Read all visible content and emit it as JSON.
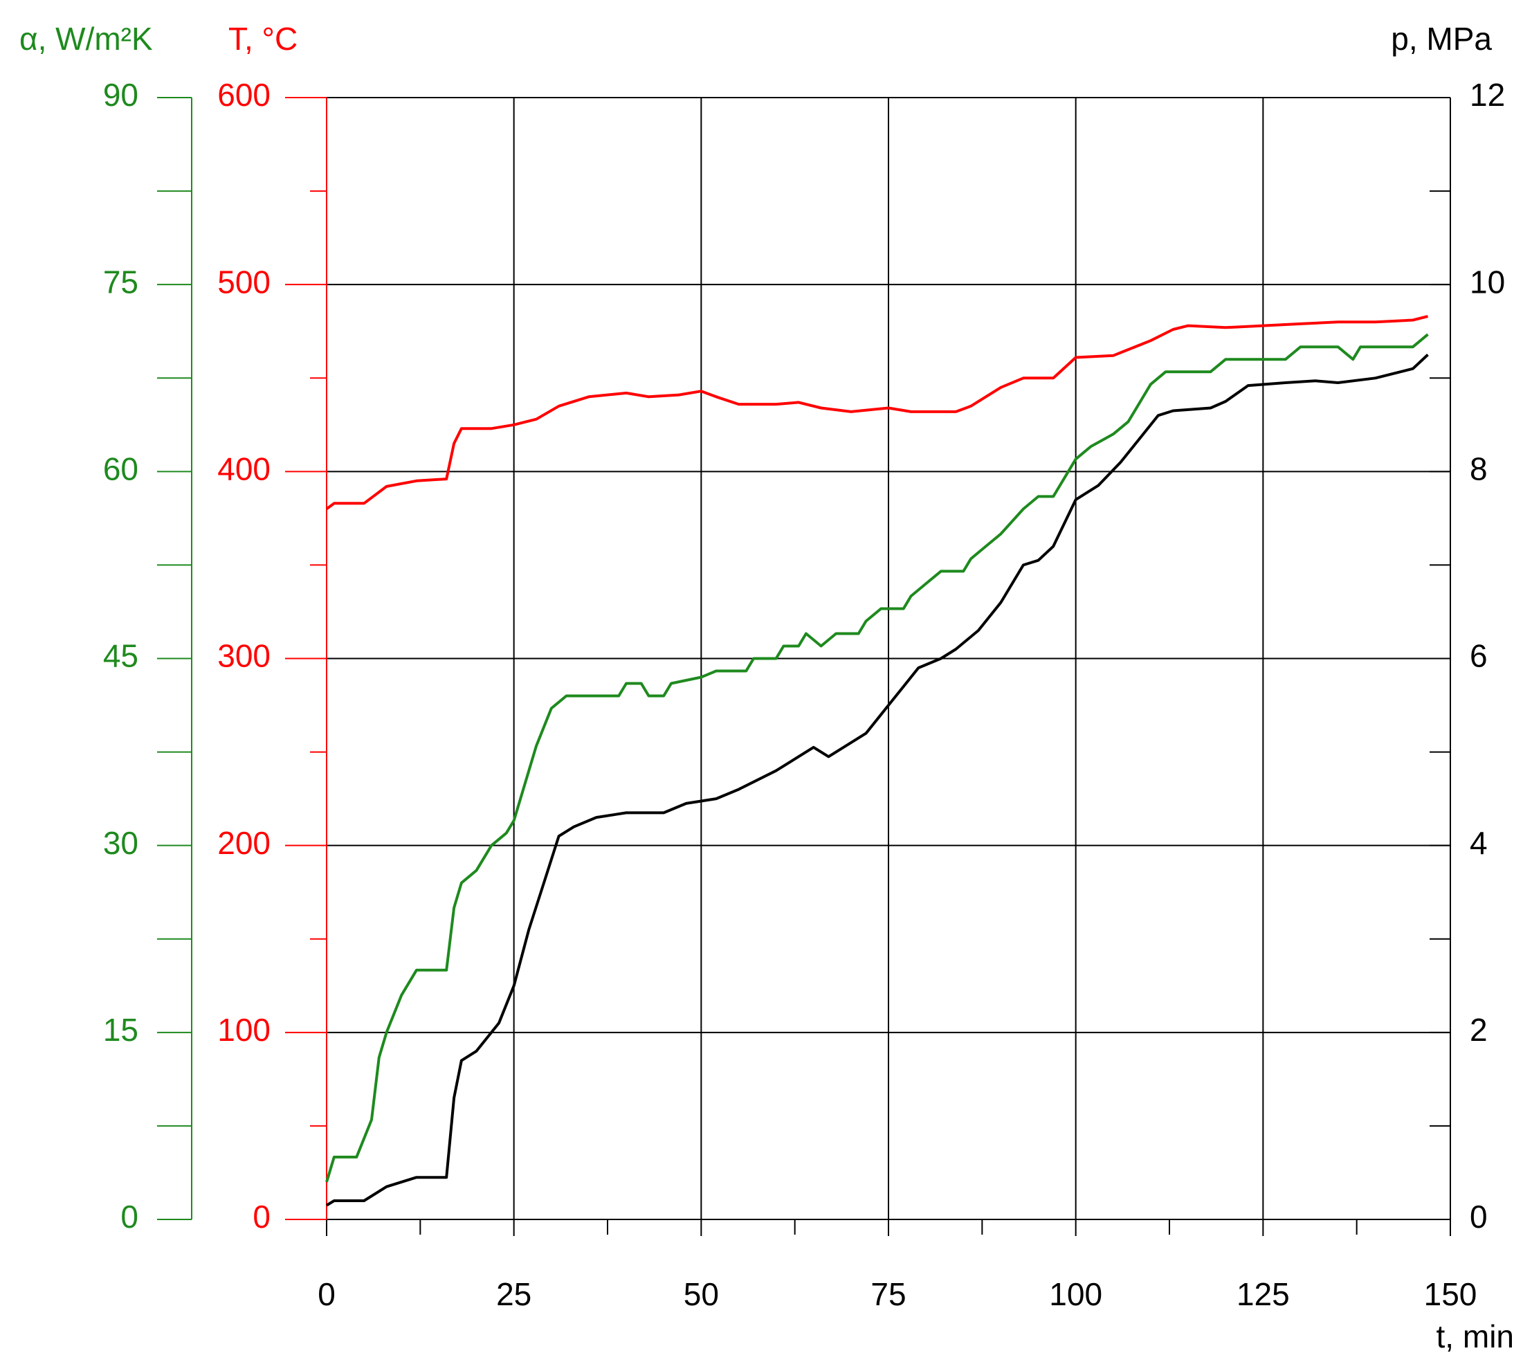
{
  "chart_data": {
    "type": "line",
    "xlabel": "t, min",
    "xlim": [
      0,
      150
    ],
    "xticks": [
      0,
      25,
      50,
      75,
      100,
      125,
      150
    ],
    "x_minor_ticks": [
      12.5,
      37.5,
      62.5,
      87.5,
      112.5,
      137.5
    ],
    "grid": true,
    "y_axes": [
      {
        "label": "α, W/m²K",
        "color": "#1e8a1e",
        "side": "left",
        "lim": [
          0,
          90
        ],
        "ticks": [
          0,
          15,
          30,
          45,
          60,
          75,
          90
        ],
        "minor_ticks": [
          7.5,
          22.5,
          37.5,
          52.5,
          67.5,
          82.5
        ]
      },
      {
        "label": "T, °C",
        "color": "#ff0000",
        "side": "left",
        "lim": [
          0,
          600
        ],
        "ticks": [
          0,
          100,
          200,
          300,
          400,
          500,
          600
        ],
        "minor_ticks": [
          50,
          150,
          250,
          350,
          450,
          550
        ]
      },
      {
        "label": "p, MPa",
        "color": "#000000",
        "side": "right",
        "lim": [
          0,
          12
        ],
        "ticks": [
          0,
          2,
          4,
          6,
          8,
          10,
          12
        ],
        "minor_ticks": [
          1,
          3,
          5,
          7,
          9,
          11
        ]
      }
    ],
    "series": [
      {
        "color": "#ff0000",
        "axis": 1,
        "x": [
          0,
          1,
          5,
          8,
          12,
          16,
          17,
          18,
          22,
          25,
          28,
          31,
          35,
          40,
          43,
          47,
          50,
          52,
          55,
          60,
          63,
          66,
          70,
          75,
          78,
          84,
          86,
          90,
          93,
          97,
          100,
          105,
          110,
          113,
          115,
          120,
          125,
          130,
          135,
          140,
          145,
          147
        ],
        "values": [
          380,
          383,
          383,
          392,
          395,
          396,
          415,
          423,
          423,
          425,
          428,
          435,
          440,
          442,
          440,
          441,
          443,
          440,
          436,
          436,
          437,
          434,
          432,
          434,
          432,
          432,
          435,
          445,
          450,
          450,
          461,
          462,
          470,
          476,
          478,
          477,
          478,
          479,
          480,
          480,
          481,
          483
        ]
      },
      {
        "color": "#1e8a1e",
        "axis": 0,
        "x": [
          0,
          1,
          4,
          6,
          7,
          8,
          10,
          12,
          16,
          17,
          18,
          20,
          22,
          24,
          25,
          28,
          30,
          32,
          35,
          39,
          40,
          42,
          43,
          45,
          46,
          50,
          52,
          56,
          57,
          60,
          61,
          63,
          64,
          66,
          68,
          71,
          72,
          74,
          77,
          78,
          80,
          82,
          85,
          86,
          88,
          90,
          93,
          95,
          97,
          100,
          102,
          105,
          107,
          110,
          112,
          118,
          120,
          125,
          128,
          130,
          135,
          137,
          138,
          142,
          145,
          147
        ],
        "values": [
          3,
          5,
          5,
          8,
          13,
          15,
          18,
          20,
          20,
          25,
          27,
          28,
          30,
          31,
          32,
          38,
          41,
          42,
          42,
          42,
          43,
          43,
          42,
          42,
          43,
          43.5,
          44,
          44,
          45,
          45,
          46,
          46,
          47,
          46,
          47,
          47,
          48,
          49,
          49,
          50,
          51,
          52,
          52,
          53,
          54,
          55,
          57,
          58,
          58,
          61,
          62,
          63,
          64,
          67,
          68,
          68,
          69,
          69,
          69,
          70,
          70,
          69,
          70,
          70,
          70,
          71
        ]
      },
      {
        "color": "#000000",
        "axis": 2,
        "x": [
          0,
          1,
          5,
          8,
          12,
          16,
          17,
          18,
          20,
          23,
          25,
          27,
          29,
          31,
          33,
          36,
          40,
          45,
          48,
          52,
          55,
          60,
          62,
          65,
          67,
          70,
          72,
          75,
          77,
          79,
          82,
          84,
          87,
          90,
          93,
          95,
          97,
          100,
          103,
          106,
          108,
          111,
          113,
          118,
          120,
          123,
          128,
          132,
          135,
          140,
          145,
          147
        ],
        "values": [
          0.15,
          0.2,
          0.2,
          0.35,
          0.45,
          0.45,
          1.3,
          1.7,
          1.8,
          2.1,
          2.5,
          3.1,
          3.6,
          4.1,
          4.2,
          4.3,
          4.35,
          4.35,
          4.45,
          4.5,
          4.6,
          4.8,
          4.9,
          5.05,
          4.95,
          5.1,
          5.2,
          5.5,
          5.7,
          5.9,
          6.0,
          6.1,
          6.3,
          6.6,
          7.0,
          7.05,
          7.2,
          7.7,
          7.85,
          8.1,
          8.3,
          8.6,
          8.65,
          8.68,
          8.75,
          8.92,
          8.95,
          8.97,
          8.95,
          9.0,
          9.1,
          9.25
        ]
      }
    ]
  }
}
